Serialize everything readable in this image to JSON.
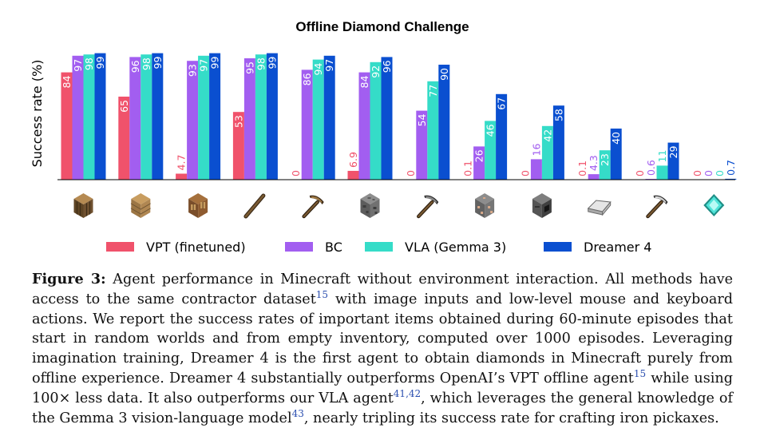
{
  "chart_data": {
    "type": "bar",
    "title": "Offline Diamond Challenge",
    "ylabel": "Success rate (%)",
    "xlabel": "",
    "ylim": [
      0,
      100
    ],
    "grid": false,
    "legend_position": "bottom",
    "categories": [
      "log",
      "planks",
      "crafting table",
      "stick",
      "wooden pickaxe",
      "cobblestone",
      "stone pickaxe",
      "iron ore",
      "furnace",
      "iron ingot",
      "iron pickaxe",
      "diamond"
    ],
    "category_icons": [
      "log-icon",
      "planks-icon",
      "crafting-table-icon",
      "stick-icon",
      "wooden-pickaxe-icon",
      "cobblestone-icon",
      "stone-pickaxe-icon",
      "iron-ore-icon",
      "furnace-icon",
      "iron-ingot-icon",
      "iron-pickaxe-icon",
      "diamond-icon"
    ],
    "series": [
      {
        "name": "VPT (finetuned)",
        "color": "#f0526b",
        "values": [
          84,
          65,
          4.7,
          53,
          0,
          6.9,
          0,
          0.1,
          0,
          0.1,
          0,
          0
        ],
        "labels": [
          "84",
          "65",
          "4.7",
          "53",
          "0",
          "6.9",
          "0",
          "0.1",
          "0",
          "0.1",
          "0",
          "0"
        ]
      },
      {
        "name": "BC",
        "color": "#a25ef0",
        "values": [
          97,
          96,
          93,
          95,
          86,
          84,
          54,
          26,
          16,
          4.3,
          0.6,
          0
        ],
        "labels": [
          "97",
          "96",
          "93",
          "95",
          "86",
          "84",
          "54",
          "26",
          "16",
          "4.3",
          "0.6",
          "0"
        ]
      },
      {
        "name": "VLA (Gemma 3)",
        "color": "#35dcc8",
        "values": [
          98,
          98,
          97,
          98,
          94,
          92,
          77,
          46,
          42,
          23,
          11,
          0
        ],
        "labels": [
          "98",
          "98",
          "97",
          "98",
          "94",
          "92",
          "77",
          "46",
          "42",
          "23",
          "11",
          "0"
        ]
      },
      {
        "name": "Dreamer 4",
        "color": "#0a4fd0",
        "values": [
          99,
          99,
          99,
          99,
          97,
          96,
          90,
          67,
          58,
          40,
          29,
          0.7
        ],
        "labels": [
          "99",
          "99",
          "99",
          "99",
          "97",
          "96",
          "90",
          "67",
          "58",
          "40",
          "29",
          "0.7"
        ]
      }
    ]
  },
  "caption": {
    "label": "Figure 3:",
    "text_1": " Agent performance in Minecraft without environment interaction. All methods have access to the same contractor dataset",
    "ref_1": "15",
    "text_2": " with image inputs and low-level mouse and keyboard actions. We report the success rates of important items obtained during 60-minute episodes that start in random worlds and from empty inventory, computed over 1000 episodes. Leveraging imagination training, Dreamer 4 is the first agent to obtain diamonds in Minecraft purely from offline experience. Dreamer 4 substantially outperforms OpenAI’s VPT offline agent",
    "ref_2": "15",
    "text_3": " while using 100× less data. It also outperforms our VLA agent",
    "ref_3": "41,42",
    "text_4": ", which leverages the general knowledge of the Gemma 3 vision-language model",
    "ref_4": "43",
    "text_5": ", nearly tripling its success rate for crafting iron pickaxes."
  }
}
